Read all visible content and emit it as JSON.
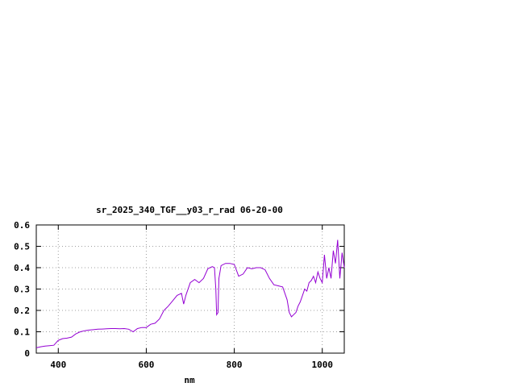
{
  "chart_data": {
    "type": "line",
    "title": "sr_2025_340_TGF__y03_r_rad 06-20-00",
    "xlabel": "nm",
    "ylabel": "",
    "xlim": [
      350,
      1050
    ],
    "ylim": [
      0,
      0.6
    ],
    "x_ticks": [
      400,
      600,
      800,
      1000
    ],
    "x_tick_labels": [
      "400",
      "600",
      "800",
      "1000"
    ],
    "y_ticks": [
      0,
      0.1,
      0.2,
      0.3,
      0.4,
      0.5,
      0.6
    ],
    "y_tick_labels": [
      "0",
      "0.1",
      "0.2",
      "0.3",
      "0.4",
      "0.5",
      "0.6"
    ],
    "grid": true,
    "legend": "none",
    "series": [
      {
        "color": "#9400d3",
        "x": [
          350,
          360,
          370,
          380,
          390,
          400,
          410,
          420,
          430,
          440,
          450,
          460,
          470,
          480,
          490,
          500,
          510,
          520,
          530,
          540,
          550,
          560,
          570,
          580,
          590,
          600,
          610,
          620,
          630,
          640,
          650,
          660,
          670,
          680,
          685,
          690,
          700,
          710,
          720,
          730,
          740,
          750,
          755,
          758,
          760,
          763,
          765,
          770,
          780,
          790,
          800,
          810,
          820,
          830,
          840,
          850,
          860,
          870,
          880,
          890,
          900,
          910,
          920,
          925,
          930,
          935,
          940,
          945,
          950,
          955,
          960,
          965,
          970,
          975,
          980,
          985,
          990,
          995,
          1000,
          1005,
          1010,
          1015,
          1020,
          1025,
          1030,
          1035,
          1040,
          1045,
          1050
        ],
        "y": [
          0.025,
          0.03,
          0.033,
          0.035,
          0.037,
          0.06,
          0.068,
          0.07,
          0.075,
          0.09,
          0.1,
          0.105,
          0.108,
          0.11,
          0.112,
          0.113,
          0.114,
          0.115,
          0.115,
          0.114,
          0.115,
          0.112,
          0.1,
          0.115,
          0.12,
          0.12,
          0.135,
          0.14,
          0.16,
          0.2,
          0.22,
          0.245,
          0.27,
          0.28,
          0.23,
          0.27,
          0.33,
          0.345,
          0.33,
          0.35,
          0.395,
          0.405,
          0.4,
          0.3,
          0.18,
          0.19,
          0.35,
          0.41,
          0.42,
          0.42,
          0.415,
          0.36,
          0.37,
          0.4,
          0.395,
          0.4,
          0.4,
          0.39,
          0.35,
          0.32,
          0.315,
          0.31,
          0.25,
          0.19,
          0.17,
          0.18,
          0.19,
          0.22,
          0.24,
          0.27,
          0.3,
          0.29,
          0.33,
          0.34,
          0.36,
          0.33,
          0.38,
          0.35,
          0.33,
          0.46,
          0.35,
          0.4,
          0.35,
          0.48,
          0.42,
          0.53,
          0.35,
          0.47,
          0.4
        ]
      }
    ]
  }
}
